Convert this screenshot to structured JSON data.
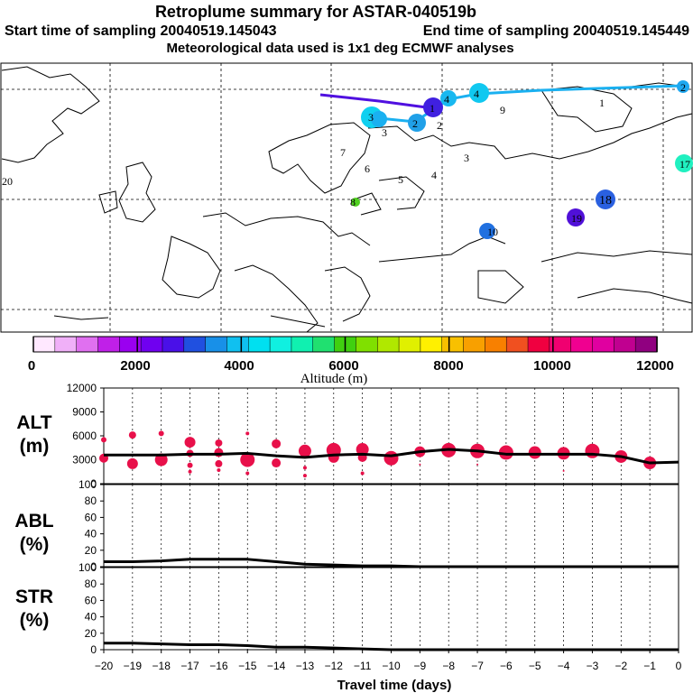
{
  "header": {
    "title": "Retroplume summary for ASTAR-040519b",
    "start_label": "Start time of sampling 20040519.145043",
    "end_label": "End time of sampling 20040519.145449",
    "met_label": "Meteorological data used is 1x1 deg ECMWF analyses"
  },
  "map": {
    "day_labels": [
      "20",
      "19",
      "18",
      "17",
      "9",
      "8",
      "7",
      "6",
      "5",
      "4",
      "4",
      "4",
      "3",
      "3",
      "3",
      "2",
      "2",
      "2",
      "1",
      "1",
      "10"
    ]
  },
  "colorbar": {
    "title": "Altitude (m)",
    "tick_labels": [
      "0",
      "2000",
      "4000",
      "6000",
      "8000",
      "10000",
      "12000"
    ],
    "colors": [
      "#ffe8ff",
      "#f0b0f8",
      "#e070f0",
      "#c020e8",
      "#9a00f0",
      "#7000f0",
      "#4a10e8",
      "#2050e0",
      "#1890e8",
      "#10c0f0",
      "#00e0f0",
      "#10f0e0",
      "#10f0b0",
      "#20e070",
      "#40d010",
      "#80e000",
      "#b0e800",
      "#e0f000",
      "#fff000",
      "#f8c000",
      "#f8a000",
      "#f88000",
      "#f05020",
      "#f00040",
      "#f00070",
      "#f00090",
      "#e000a0",
      "#c00090",
      "#900080"
    ]
  },
  "colors": {
    "marker": "#e8104a",
    "line": "#000000",
    "grid": "#000000",
    "track_near": "#1ab0f0",
    "track_far": "#5010e0"
  },
  "chart_data": [
    {
      "type": "scatter",
      "panel": "ALT",
      "ylabel": "ALT\n(m)",
      "ylabel_lines": [
        "ALT",
        "(m)"
      ],
      "ylim": [
        0,
        12000
      ],
      "yticks": [
        0,
        3000,
        6000,
        9000,
        12000
      ],
      "xlim": [
        -20,
        0
      ],
      "mean_line": {
        "x": [
          -20,
          -19,
          -18,
          -17,
          -16,
          -15,
          -14,
          -13,
          -12,
          -11,
          -10,
          -9,
          -8,
          -7,
          -6,
          -5,
          -4,
          -3,
          -2,
          -1,
          0
        ],
        "y": [
          3600,
          3600,
          3600,
          3700,
          3700,
          3800,
          3500,
          3300,
          3600,
          3700,
          3500,
          4000,
          4300,
          4100,
          3700,
          3700,
          3700,
          3700,
          3400,
          2600,
          2700
        ]
      },
      "points": [
        {
          "x": -20,
          "y": 5500,
          "s": 3
        },
        {
          "x": -20,
          "y": 3200,
          "s": 5
        },
        {
          "x": -19,
          "y": 6100,
          "s": 4
        },
        {
          "x": -19,
          "y": 2500,
          "s": 6
        },
        {
          "x": -18,
          "y": 6300,
          "s": 3
        },
        {
          "x": -18,
          "y": 3000,
          "s": 7
        },
        {
          "x": -17,
          "y": 5200,
          "s": 6
        },
        {
          "x": -17,
          "y": 3800,
          "s": 4
        },
        {
          "x": -17,
          "y": 2300,
          "s": 3
        },
        {
          "x": -17,
          "y": 1500,
          "s": 2
        },
        {
          "x": -16,
          "y": 5100,
          "s": 4
        },
        {
          "x": -16,
          "y": 3900,
          "s": 5
        },
        {
          "x": -16,
          "y": 2500,
          "s": 4
        },
        {
          "x": -16,
          "y": 1700,
          "s": 2
        },
        {
          "x": -15,
          "y": 6300,
          "s": 2
        },
        {
          "x": -15,
          "y": 3000,
          "s": 8
        },
        {
          "x": -15,
          "y": 1300,
          "s": 2
        },
        {
          "x": -14,
          "y": 5000,
          "s": 5
        },
        {
          "x": -14,
          "y": 2600,
          "s": 5
        },
        {
          "x": -13,
          "y": 4100,
          "s": 7
        },
        {
          "x": -13,
          "y": 2000,
          "s": 2
        },
        {
          "x": -13,
          "y": 1000,
          "s": 2
        },
        {
          "x": -12,
          "y": 4200,
          "s": 8
        },
        {
          "x": -12,
          "y": 3300,
          "s": 6
        },
        {
          "x": -11,
          "y": 4300,
          "s": 7
        },
        {
          "x": -11,
          "y": 3300,
          "s": 5
        },
        {
          "x": -11,
          "y": 1300,
          "s": 2
        },
        {
          "x": -10,
          "y": 3200,
          "s": 8
        },
        {
          "x": -9,
          "y": 4000,
          "s": 6
        },
        {
          "x": -9,
          "y": 2400,
          "s": 1
        },
        {
          "x": -8,
          "y": 4200,
          "s": 8
        },
        {
          "x": -7,
          "y": 4100,
          "s": 8
        },
        {
          "x": -7,
          "y": 2400,
          "s": 1
        },
        {
          "x": -6,
          "y": 3900,
          "s": 8
        },
        {
          "x": -5,
          "y": 3900,
          "s": 7
        },
        {
          "x": -4,
          "y": 3800,
          "s": 7
        },
        {
          "x": -4,
          "y": 1600,
          "s": 1
        },
        {
          "x": -3,
          "y": 4100,
          "s": 8
        },
        {
          "x": -2,
          "y": 3400,
          "s": 7
        },
        {
          "x": -1,
          "y": 2600,
          "s": 7
        }
      ]
    },
    {
      "type": "line",
      "panel": "ABL",
      "ylabel": "ABL\n(%)",
      "ylabel_lines": [
        "ABL",
        "(%)"
      ],
      "ylim": [
        0,
        100
      ],
      "yticks": [
        0,
        20,
        40,
        60,
        80,
        100
      ],
      "xlim": [
        -20,
        0
      ],
      "x": [
        -20,
        -19,
        -18,
        -17,
        -16,
        -15,
        -14,
        -13,
        -12,
        -11,
        -10,
        -9,
        -8,
        -7,
        -6,
        -5,
        -4,
        -3,
        -2,
        -1,
        0
      ],
      "y": [
        6,
        6,
        7,
        9,
        9,
        9,
        6,
        3,
        2,
        1,
        1,
        0,
        0,
        0,
        0,
        0,
        0,
        0,
        0,
        0,
        0
      ]
    },
    {
      "type": "line",
      "panel": "STR",
      "ylabel": "STR\n(%)",
      "ylabel_lines": [
        "STR",
        "(%)"
      ],
      "ylim": [
        0,
        100
      ],
      "yticks": [
        0,
        20,
        40,
        60,
        80,
        100
      ],
      "xlim": [
        -20,
        0
      ],
      "xlabel": "Travel time (days)",
      "xticks": [
        -20,
        -19,
        -18,
        -17,
        -16,
        -15,
        -14,
        -13,
        -12,
        -11,
        -10,
        -9,
        -8,
        -7,
        -6,
        -5,
        -4,
        -3,
        -2,
        -1,
        0
      ],
      "x": [
        -20,
        -19,
        -18,
        -17,
        -16,
        -15,
        -14,
        -13,
        -12,
        -11,
        -10,
        -9,
        -8,
        -7,
        -6,
        -5,
        -4,
        -3,
        -2,
        -1,
        0
      ],
      "y": [
        8,
        8,
        7,
        6,
        6,
        5,
        3,
        3,
        2,
        1,
        0,
        0,
        0,
        0,
        0,
        0,
        0,
        0,
        0,
        0,
        0
      ]
    }
  ]
}
